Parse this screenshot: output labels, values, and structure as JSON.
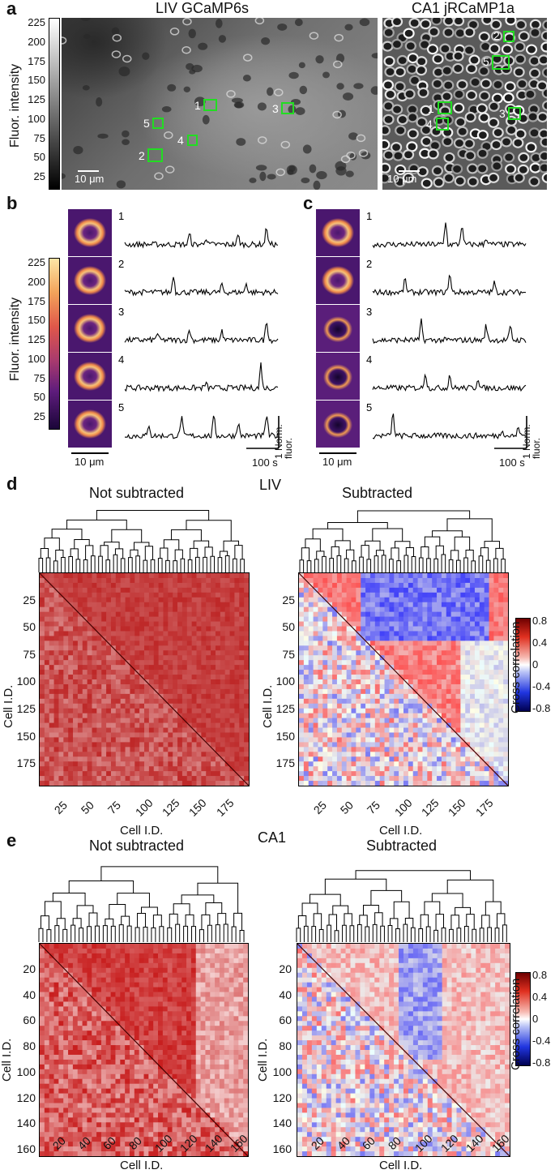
{
  "panel_a": {
    "label": "a",
    "left_title": "LIV GCaMP6s",
    "right_title": "CA1 jRCaMP1a",
    "colorbar_label": "Fluor. intensity",
    "colorbar_ticks": [
      "225",
      "200",
      "175",
      "150",
      "125",
      "100",
      "75",
      "50",
      "25"
    ],
    "left_scalebar": "10 μm",
    "right_scalebar": "10 μm",
    "left_rois": [
      "1",
      "2",
      "3",
      "4",
      "5"
    ],
    "right_rois": [
      "1",
      "2",
      "3",
      "4",
      "5"
    ]
  },
  "panel_b": {
    "label": "b",
    "colorbar_label": "Fluor. intensity",
    "colorbar_ticks": [
      "225",
      "200",
      "175",
      "150",
      "125",
      "100",
      "75",
      "50",
      "25"
    ],
    "trace_labels": [
      "1",
      "2",
      "3",
      "4",
      "5"
    ],
    "image_scalebar": "10 μm",
    "time_scalebar": "100 s",
    "amp_scalebar": "1 Norm. fluor."
  },
  "panel_c": {
    "label": "c",
    "trace_labels": [
      "1",
      "2",
      "3",
      "4",
      "5"
    ],
    "image_scalebar": "10 μm",
    "time_scalebar": "100 s",
    "amp_scalebar": "1 Norm. fluor."
  },
  "panel_d": {
    "label": "d",
    "region": "LIV",
    "left_title": "Not subtracted",
    "right_title": "Subtracted",
    "y_label": "Cell I.D.",
    "x_label": "Cell I.D.",
    "ticks": [
      "25",
      "50",
      "75",
      "100",
      "125",
      "150",
      "175"
    ],
    "colorbar_label": "Cross correlation",
    "colorbar_ticks": [
      "0.8",
      "0.4",
      "0",
      "-0.4",
      "-0.8"
    ]
  },
  "panel_e": {
    "label": "e",
    "region": "CA1",
    "left_title": "Not subtracted",
    "right_title": "Subtracted",
    "y_label": "Cell I.D.",
    "x_label": "Cell I.D.",
    "ticks": [
      "20",
      "40",
      "60",
      "80",
      "100",
      "120",
      "140",
      "160"
    ],
    "colorbar_label": "Cross correlation",
    "colorbar_ticks": [
      "0.8",
      "0.4",
      "0",
      "-0.4",
      "-0.8"
    ]
  },
  "colors": {
    "roi": "#22dd22",
    "hot_low": "#1a0538",
    "hot_high": "#fde5a6",
    "corr_pos": "#d42020",
    "corr_neg": "#1a2bd6"
  }
}
